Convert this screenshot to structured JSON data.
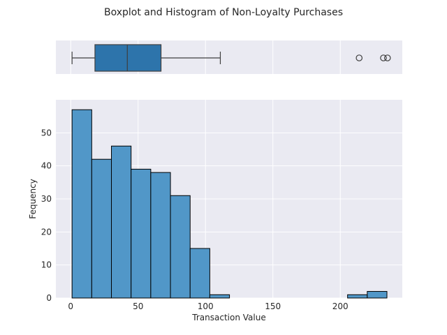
{
  "chart_data": [
    {
      "type": "boxplot",
      "title": "Boxplot and Histogram of Non-Loyalty Purchases",
      "stats": {
        "whisker_low": 1,
        "q1": 18,
        "median": 42,
        "q3": 67,
        "whisker_high": 111
      },
      "outliers": [
        214,
        232,
        235
      ],
      "color": "#2d74ab",
      "xlim": [
        -11,
        246
      ],
      "grid": true
    },
    {
      "type": "histogram",
      "xlabel": "Transaction Value",
      "ylabel": "Fequency",
      "bins": [
        {
          "start": 1,
          "end": 15.6,
          "count": 57
        },
        {
          "start": 15.6,
          "end": 30.2,
          "count": 42
        },
        {
          "start": 30.2,
          "end": 44.8,
          "count": 46
        },
        {
          "start": 44.8,
          "end": 59.4,
          "count": 39
        },
        {
          "start": 59.4,
          "end": 74.0,
          "count": 38
        },
        {
          "start": 74.0,
          "end": 88.6,
          "count": 31
        },
        {
          "start": 88.6,
          "end": 103.2,
          "count": 15
        },
        {
          "start": 103.2,
          "end": 117.8,
          "count": 1
        },
        {
          "start": 205.4,
          "end": 220.0,
          "count": 1
        },
        {
          "start": 220.0,
          "end": 234.6,
          "count": 2
        }
      ],
      "xticks": [
        "0",
        "50",
        "100",
        "150",
        "200"
      ],
      "xtick_values": [
        0,
        50,
        100,
        150,
        200
      ],
      "yticks": [
        "0",
        "10",
        "20",
        "30",
        "40",
        "50"
      ],
      "ytick_values": [
        0,
        10,
        20,
        30,
        40,
        50
      ],
      "xlim": [
        -11,
        246
      ],
      "ylim": [
        0,
        60
      ],
      "color": "#5197c8",
      "grid": true
    }
  ]
}
